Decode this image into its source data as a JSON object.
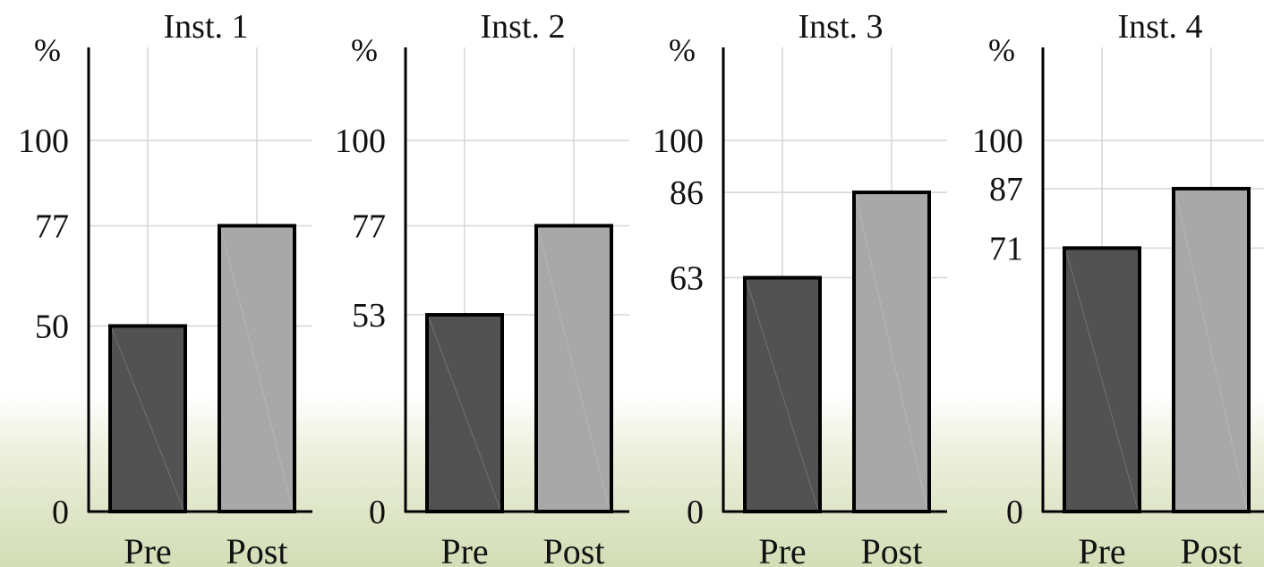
{
  "colors": {
    "pre": "#525252",
    "post": "#a8a8a8",
    "bar_border": "#000000",
    "grid": "#d6d6d6",
    "axis": "#000000",
    "background_bottom": "#d3ddb6"
  },
  "chart_data": [
    {
      "type": "bar",
      "title": "Inst. 1",
      "ylabel": "%",
      "categories": [
        "Pre",
        "Post"
      ],
      "values": [
        50,
        77
      ],
      "yticks": [
        0,
        50,
        77,
        100
      ],
      "ylim": [
        0,
        100
      ],
      "grid": true
    },
    {
      "type": "bar",
      "title": "Inst. 2",
      "ylabel": "%",
      "categories": [
        "Pre",
        "Post"
      ],
      "values": [
        53,
        77
      ],
      "yticks": [
        0,
        53,
        77,
        100
      ],
      "ylim": [
        0,
        100
      ],
      "grid": true
    },
    {
      "type": "bar",
      "title": "Inst. 3",
      "ylabel": "%",
      "categories": [
        "Pre",
        "Post"
      ],
      "values": [
        63,
        86
      ],
      "yticks": [
        0,
        63,
        86,
        100
      ],
      "ylim": [
        0,
        100
      ],
      "grid": true
    },
    {
      "type": "bar",
      "title": "Inst. 4",
      "ylabel": "%",
      "categories": [
        "Pre",
        "Post"
      ],
      "values": [
        71,
        87
      ],
      "yticks": [
        0,
        71,
        87,
        100
      ],
      "ylim": [
        0,
        100
      ],
      "grid": true
    }
  ]
}
